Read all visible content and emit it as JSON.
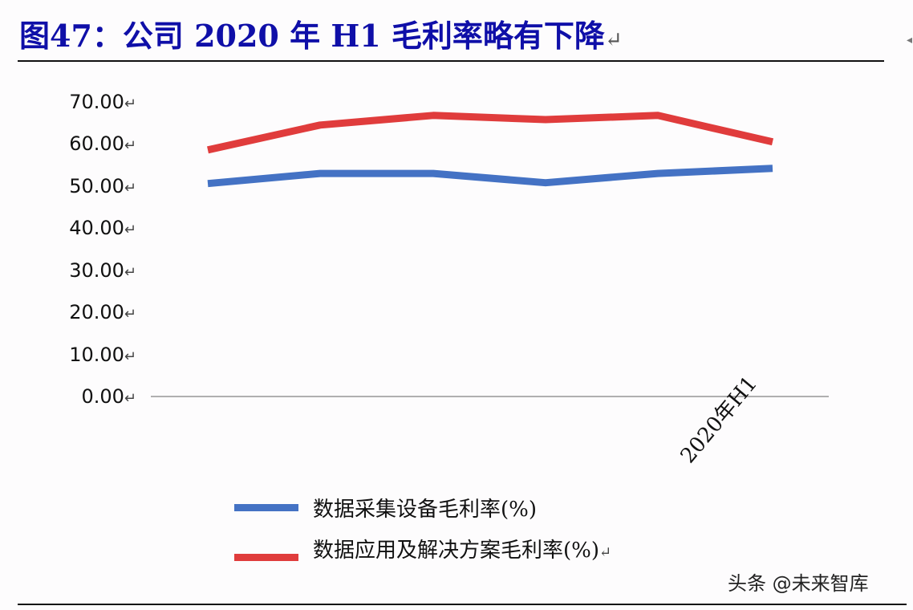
{
  "header": {
    "title": "图47：公司 2020 年 H1 毛利率略有下降",
    "return_mark": "↵"
  },
  "watermark": "头条 @未来智库",
  "colors": {
    "title": "#0f0fa8",
    "series_blue": "#4472c4",
    "series_red": "#e03c3c",
    "axis": "#b0b0b0"
  },
  "chart_data": {
    "type": "line",
    "title": "图47：公司 2020 年 H1 毛利率略有下降",
    "xlabel": "",
    "ylabel": "",
    "ylim": [
      0,
      70
    ],
    "yticks": [
      "70.00",
      "60.00",
      "50.00",
      "40.00",
      "30.00",
      "20.00",
      "10.00",
      "0.00"
    ],
    "categories": [
      "",
      "",
      "",
      "",
      "",
      "2020年H1"
    ],
    "grid": false,
    "legend_position": "bottom",
    "series": [
      {
        "name": "数据采集设备毛利率(%)",
        "color": "#4472c4",
        "values": [
          50.6,
          53.0,
          53.0,
          50.8,
          53.0,
          54.2
        ]
      },
      {
        "name": "数据应用及解决方案毛利率(%)",
        "color": "#e03c3c",
        "values": [
          58.6,
          64.5,
          66.8,
          65.8,
          66.8,
          60.5
        ]
      }
    ]
  },
  "axis": {
    "y_ticks": [
      {
        "label": "70.00",
        "value": 70
      },
      {
        "label": "60.00",
        "value": 60
      },
      {
        "label": "50.00",
        "value": 50
      },
      {
        "label": "40.00",
        "value": 40
      },
      {
        "label": "30.00",
        "value": 30
      },
      {
        "label": "20.00",
        "value": 20
      },
      {
        "label": "10.00",
        "value": 10
      },
      {
        "label": "0.00",
        "value": 0
      }
    ],
    "x_label": "2020年H1"
  },
  "legend": {
    "items": [
      {
        "label": "数据采集设备毛利率(%)",
        "color": "#4472c4"
      },
      {
        "label": "数据应用及解决方案毛利率(%)",
        "color": "#e03c3c"
      }
    ]
  }
}
